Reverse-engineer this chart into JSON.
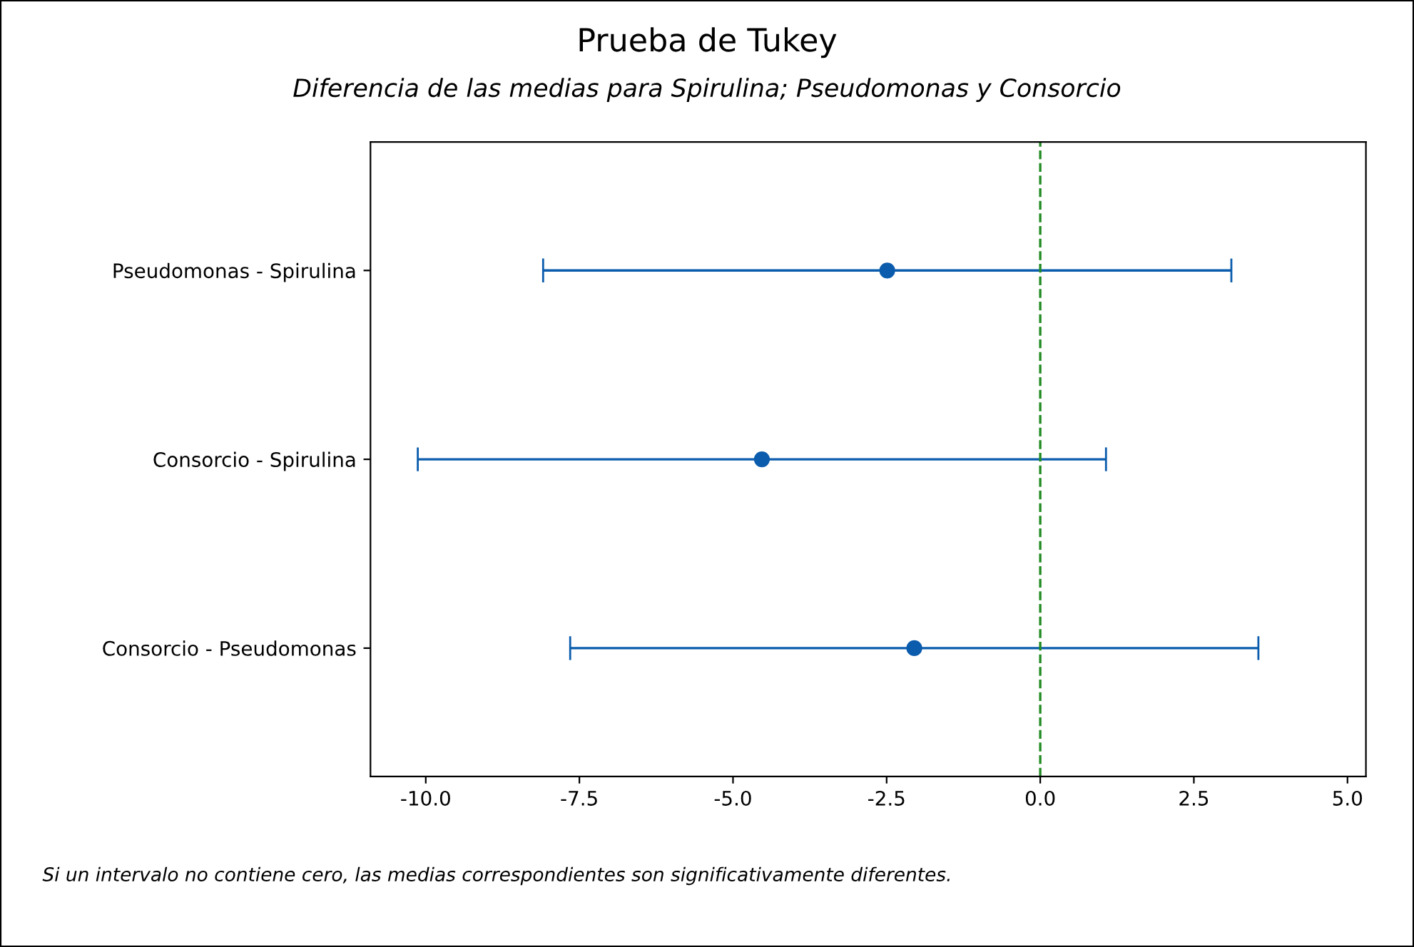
{
  "chart_data": {
    "type": "scatter",
    "orientation": "horizontal",
    "title": "Prueba de Tukey",
    "subtitle": "Diferencia de las medias para Spirulina; Pseudomonas y Consorcio",
    "categories": [
      "Pseudomonas - Spirulina",
      "Consorcio - Spirulina",
      "Consorcio - Pseudomonas"
    ],
    "series": [
      {
        "color": "#0b5cad",
        "values": [
          -2.49,
          -4.53,
          -2.05
        ],
        "errors": [
          5.6,
          5.6,
          5.6
        ]
      }
    ],
    "xlim": [
      -10.9,
      5.3
    ],
    "xticks": [
      {
        "value": -10,
        "label": "-10.0"
      },
      {
        "value": -7.5,
        "label": "-7.5"
      },
      {
        "value": -5,
        "label": "-5.0"
      },
      {
        "value": -2.5,
        "label": "-2.5"
      },
      {
        "value": 0,
        "label": "0.0"
      },
      {
        "value": 2.5,
        "label": "2.5"
      },
      {
        "value": 5,
        "label": "5.0"
      }
    ],
    "ref_lines": [
      {
        "axis": "x",
        "value": 0,
        "color": "#228b22",
        "line_style": "dashed"
      }
    ],
    "marker": "circle",
    "grid": false,
    "legend": false,
    "annotations": [
      "Si un intervalo no contiene cero, las medias correspondientes son significativamente diferentes."
    ]
  }
}
